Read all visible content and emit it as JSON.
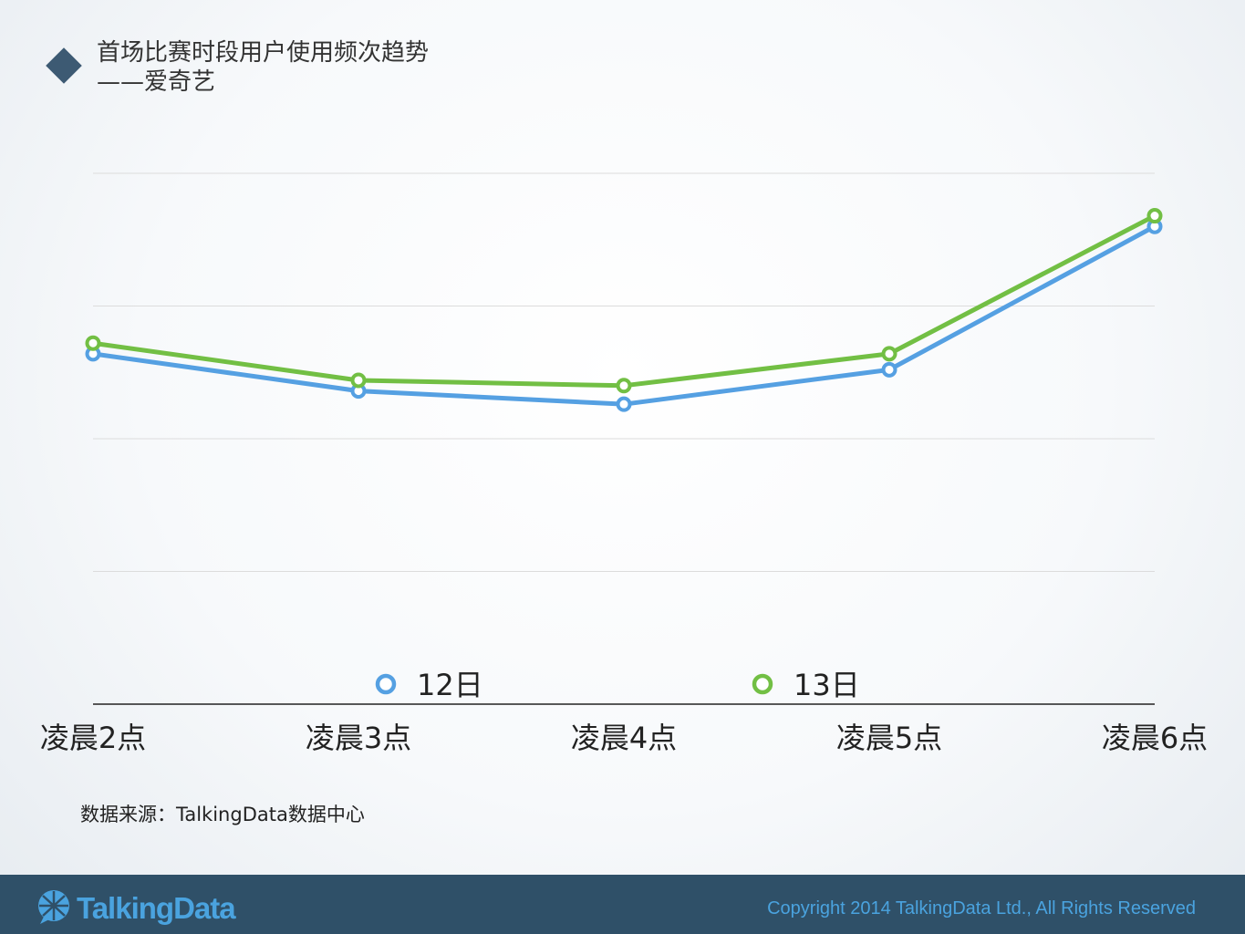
{
  "header": {
    "title": "首场比赛时段用户使用频次趋势",
    "subtitle": "——爱奇艺"
  },
  "chart_data": {
    "type": "line",
    "title": "",
    "xlabel": "",
    "ylabel": "",
    "categories": [
      "凌晨2点",
      "凌晨3点",
      "凌晨4点",
      "凌晨5点",
      "凌晨6点"
    ],
    "series": [
      {
        "name": "12日",
        "color": "#55a0e2",
        "values": [
          66,
          59,
          56.5,
          63,
          90
        ]
      },
      {
        "name": "13日",
        "color": "#72bf44",
        "values": [
          68,
          61,
          60,
          66,
          92
        ]
      }
    ],
    "ylim": [
      0,
      100
    ],
    "grid": true,
    "legend": "bottom"
  },
  "source": "数据来源：TalkingData数据中心",
  "footer": {
    "logo_text": "TalkingData",
    "copyright": "Copyright 2014 TalkingData Ltd., All Rights Reserved"
  },
  "colors": {
    "accent": "#3d5a73",
    "footer_bg": "#2f5068",
    "brand_blue": "#4aa3df"
  }
}
